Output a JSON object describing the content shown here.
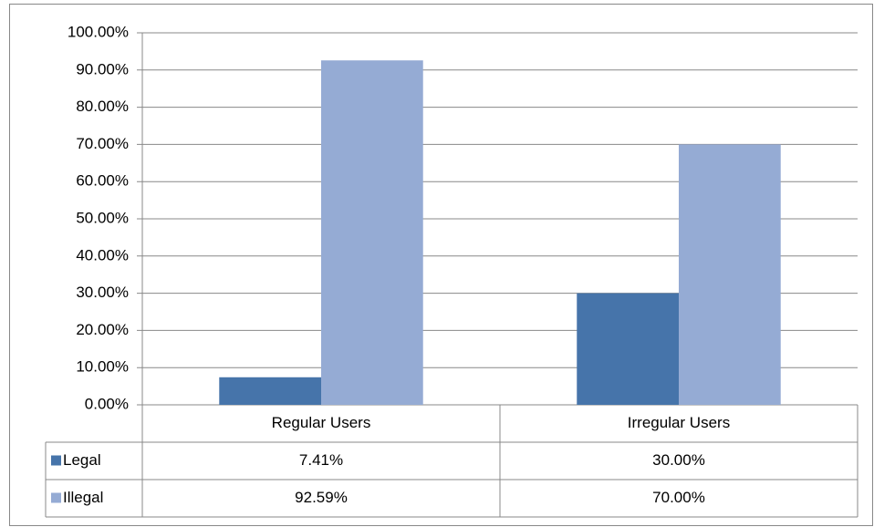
{
  "chart_data": {
    "type": "bar",
    "categories": [
      "Regular Users",
      "Irregular Users"
    ],
    "series": [
      {
        "name": "Legal",
        "color": "#4674aa",
        "values": [
          7.41,
          30
        ],
        "value_labels": [
          "7.41%",
          "30.00%"
        ]
      },
      {
        "name": "Illegal",
        "color": "#95abd4",
        "values": [
          92.59,
          70
        ],
        "value_labels": [
          "92.59%",
          "70.00%"
        ]
      }
    ],
    "ylim": [
      0,
      100
    ],
    "yticks": [
      {
        "value": 0,
        "label": "0.00%"
      },
      {
        "value": 10,
        "label": "10.00%"
      },
      {
        "value": 20,
        "label": "20.00%"
      },
      {
        "value": 30,
        "label": "30.00%"
      },
      {
        "value": 40,
        "label": "40.00%"
      },
      {
        "value": 50,
        "label": "50.00%"
      },
      {
        "value": 60,
        "label": "60.00%"
      },
      {
        "value": 70,
        "label": "70.00%"
      },
      {
        "value": 80,
        "label": "80.00%"
      },
      {
        "value": 90,
        "label": "90.00%"
      },
      {
        "value": 100,
        "label": "100.00%"
      }
    ],
    "grid": true
  }
}
